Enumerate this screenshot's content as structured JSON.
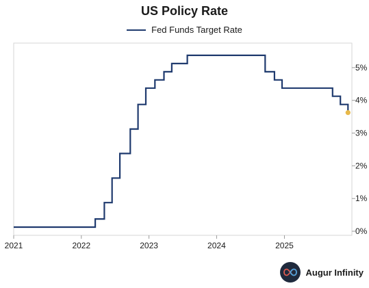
{
  "brand": {
    "name": "Augur Infinity",
    "logo_icon": "infinity-icon"
  },
  "chart_data": {
    "type": "line",
    "title": "US Policy Rate",
    "series": [
      {
        "name": "Fed Funds Target Rate",
        "color": "#1f3a6e",
        "points": [
          [
            "2021-01-01",
            0.125
          ],
          [
            "2022-03-17",
            0.375
          ],
          [
            "2022-05-05",
            0.875
          ],
          [
            "2022-06-16",
            1.625
          ],
          [
            "2022-07-28",
            2.375
          ],
          [
            "2022-09-22",
            3.125
          ],
          [
            "2022-11-03",
            3.875
          ],
          [
            "2022-12-15",
            4.375
          ],
          [
            "2023-02-02",
            4.625
          ],
          [
            "2023-03-23",
            4.875
          ],
          [
            "2023-05-04",
            5.125
          ],
          [
            "2023-07-27",
            5.375
          ],
          [
            "2024-09-19",
            4.875
          ],
          [
            "2024-11-08",
            4.625
          ],
          [
            "2024-12-19",
            4.375
          ],
          [
            "2025-09-18",
            4.125
          ],
          [
            "2025-10-30",
            3.875
          ],
          [
            "2025-12-10",
            3.875
          ],
          [
            "2025-12-10",
            3.625
          ]
        ]
      }
    ],
    "marker": {
      "date": "2025-12-10",
      "value": 3.625,
      "color": "#e8b94a"
    },
    "x_ticks": [
      {
        "date": "2021-01-01",
        "label": "2021"
      },
      {
        "date": "2022-01-01",
        "label": "2022"
      },
      {
        "date": "2023-01-01",
        "label": "2023"
      },
      {
        "date": "2024-01-01",
        "label": "2024"
      },
      {
        "date": "2025-01-01",
        "label": "2025"
      }
    ],
    "y_ticks": [
      {
        "value": 0,
        "label": "0%"
      },
      {
        "value": 1,
        "label": "1%"
      },
      {
        "value": 2,
        "label": "2%"
      },
      {
        "value": 3,
        "label": "3%"
      },
      {
        "value": 4,
        "label": "4%"
      },
      {
        "value": 5,
        "label": "5%"
      }
    ],
    "xlim": [
      "2021-01-01",
      "2025-12-31"
    ],
    "ylim": [
      -0.125,
      5.75
    ],
    "y_axis_side": "right",
    "grid": false
  }
}
